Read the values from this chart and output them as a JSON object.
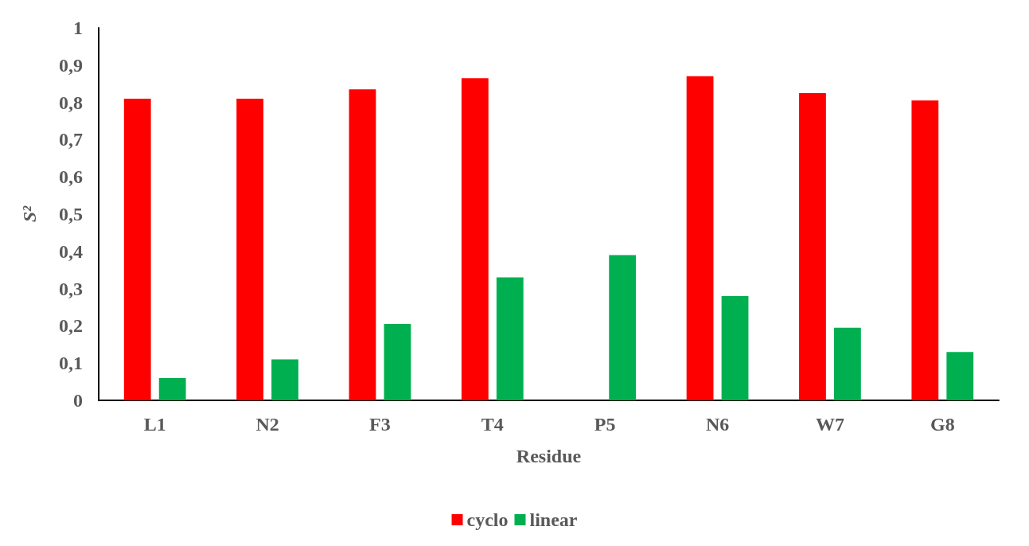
{
  "chart_data": {
    "type": "bar",
    "xlabel": "Residue",
    "ylabel": "S²",
    "categories": [
      "L1",
      "N2",
      "F3",
      "T4",
      "P5",
      "N6",
      "W7",
      "G8"
    ],
    "series": [
      {
        "name": "cyclo",
        "color": "#ff0000",
        "values": [
          0.81,
          0.81,
          0.835,
          0.865,
          null,
          0.87,
          0.825,
          0.805
        ]
      },
      {
        "name": "linear",
        "color": "#00b050",
        "values": [
          0.06,
          0.11,
          0.205,
          0.33,
          0.39,
          0.28,
          0.195,
          0.13
        ]
      }
    ],
    "ylim": [
      0,
      1
    ],
    "yticks": [
      0,
      {
        "value": 0.1,
        "label": "0,1"
      },
      {
        "value": 0.2,
        "label": "0,2"
      },
      {
        "value": 0.3,
        "label": "0,3"
      },
      {
        "value": 0.4,
        "label": "0,4"
      },
      {
        "value": 0.5,
        "label": "0,5"
      },
      {
        "value": 0.6,
        "label": "0,6"
      },
      {
        "value": 0.7,
        "label": "0,7"
      },
      {
        "value": 0.8,
        "label": "0,8"
      },
      {
        "value": 0.9,
        "label": "0,9"
      },
      1
    ],
    "grid": false,
    "legend": "bottom"
  }
}
